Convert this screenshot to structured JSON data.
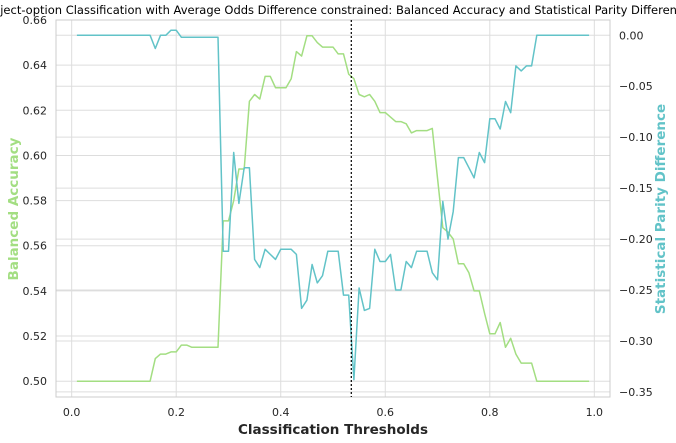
{
  "chart_data": {
    "type": "line",
    "title": "Reject-option Classification with Average Odds Difference constrained: Balanced Accuracy and Statistical Parity Difference",
    "xlabel": "Classification Thresholds",
    "ylabel_left": "Balanced Accuracy",
    "ylabel_right": "Statistical Parity Difference",
    "xlim": [
      -0.03,
      1.03
    ],
    "ylim_left": [
      0.493,
      0.66
    ],
    "ylim_right": [
      -0.355,
      0.015
    ],
    "xticks": [
      "0.0",
      "0.2",
      "0.4",
      "0.6",
      "0.8",
      "1.0"
    ],
    "xtick_values": [
      0.0,
      0.2,
      0.4,
      0.6,
      0.8,
      1.0
    ],
    "yticks_left": [
      "0.50",
      "0.52",
      "0.54",
      "0.56",
      "0.58",
      "0.60",
      "0.62",
      "0.64",
      "0.66"
    ],
    "ytick_values_left": [
      0.5,
      0.52,
      0.54,
      0.56,
      0.58,
      0.6,
      0.62,
      0.64,
      0.66
    ],
    "yticks_right": [
      "0.00",
      "−0.05",
      "−0.10",
      "−0.15",
      "−0.20",
      "−0.25",
      "−0.30",
      "−0.35"
    ],
    "ytick_values_right": [
      0.0,
      -0.05,
      -0.1,
      -0.15,
      -0.2,
      -0.25,
      -0.3,
      -0.35
    ],
    "grid": true,
    "vline_x": 0.535,
    "colors": {
      "left": "#a3de82",
      "right": "#62c3c8",
      "vline": "#000000"
    },
    "series": [
      {
        "axis": "left",
        "x": [
          0.01,
          0.15,
          0.16,
          0.17,
          0.18,
          0.19,
          0.2,
          0.21,
          0.22,
          0.23,
          0.28,
          0.29,
          0.3,
          0.31,
          0.32,
          0.33,
          0.34,
          0.35,
          0.36,
          0.37,
          0.38,
          0.39,
          0.4,
          0.41,
          0.42,
          0.43,
          0.44,
          0.45,
          0.46,
          0.47,
          0.48,
          0.49,
          0.5,
          0.51,
          0.52,
          0.53,
          0.54,
          0.55,
          0.56,
          0.57,
          0.58,
          0.59,
          0.6,
          0.61,
          0.62,
          0.63,
          0.64,
          0.65,
          0.66,
          0.67,
          0.68,
          0.69,
          0.7,
          0.71,
          0.72,
          0.73,
          0.74,
          0.75,
          0.76,
          0.77,
          0.78,
          0.79,
          0.8,
          0.81,
          0.82,
          0.83,
          0.84,
          0.85,
          0.86,
          0.87,
          0.88,
          0.89,
          0.99
        ],
        "values": [
          0.5,
          0.5,
          0.51,
          0.512,
          0.512,
          0.513,
          0.513,
          0.516,
          0.516,
          0.515,
          0.515,
          0.571,
          0.571,
          0.58,
          0.594,
          0.594,
          0.624,
          0.627,
          0.625,
          0.635,
          0.635,
          0.63,
          0.63,
          0.63,
          0.634,
          0.646,
          0.644,
          0.653,
          0.653,
          0.65,
          0.648,
          0.648,
          0.648,
          0.645,
          0.645,
          0.636,
          0.634,
          0.627,
          0.626,
          0.627,
          0.624,
          0.619,
          0.619,
          0.617,
          0.615,
          0.615,
          0.614,
          0.61,
          0.611,
          0.611,
          0.611,
          0.612,
          0.59,
          0.568,
          0.566,
          0.563,
          0.552,
          0.552,
          0.548,
          0.54,
          0.54,
          0.53,
          0.521,
          0.521,
          0.526,
          0.515,
          0.519,
          0.512,
          0.508,
          0.508,
          0.508,
          0.5,
          0.5
        ]
      },
      {
        "axis": "right",
        "x": [
          0.01,
          0.15,
          0.16,
          0.17,
          0.18,
          0.19,
          0.2,
          0.21,
          0.22,
          0.23,
          0.28,
          0.29,
          0.3,
          0.31,
          0.32,
          0.33,
          0.34,
          0.35,
          0.36,
          0.37,
          0.38,
          0.39,
          0.4,
          0.41,
          0.42,
          0.43,
          0.44,
          0.45,
          0.46,
          0.47,
          0.48,
          0.49,
          0.5,
          0.51,
          0.52,
          0.53,
          0.54,
          0.55,
          0.56,
          0.57,
          0.58,
          0.59,
          0.6,
          0.61,
          0.62,
          0.63,
          0.64,
          0.65,
          0.66,
          0.67,
          0.68,
          0.69,
          0.7,
          0.71,
          0.72,
          0.73,
          0.74,
          0.75,
          0.76,
          0.77,
          0.78,
          0.79,
          0.8,
          0.81,
          0.82,
          0.83,
          0.84,
          0.85,
          0.86,
          0.87,
          0.88,
          0.89,
          0.99
        ],
        "values": [
          0.0,
          0.0,
          -0.013,
          0.0,
          0.0,
          0.005,
          0.005,
          -0.002,
          -0.002,
          -0.002,
          -0.002,
          -0.212,
          -0.212,
          -0.115,
          -0.165,
          -0.13,
          -0.13,
          -0.22,
          -0.228,
          -0.21,
          -0.215,
          -0.22,
          -0.21,
          -0.21,
          -0.21,
          -0.215,
          -0.268,
          -0.26,
          -0.225,
          -0.243,
          -0.236,
          -0.212,
          -0.212,
          -0.212,
          -0.255,
          -0.255,
          -0.338,
          -0.248,
          -0.27,
          -0.268,
          -0.21,
          -0.222,
          -0.222,
          -0.215,
          -0.25,
          -0.25,
          -0.222,
          -0.228,
          -0.212,
          -0.212,
          -0.212,
          -0.233,
          -0.24,
          -0.163,
          -0.2,
          -0.173,
          -0.12,
          -0.12,
          -0.13,
          -0.14,
          -0.115,
          -0.125,
          -0.082,
          -0.082,
          -0.092,
          -0.065,
          -0.076,
          -0.03,
          -0.035,
          -0.03,
          -0.03,
          0.0,
          0.0
        ]
      }
    ]
  }
}
